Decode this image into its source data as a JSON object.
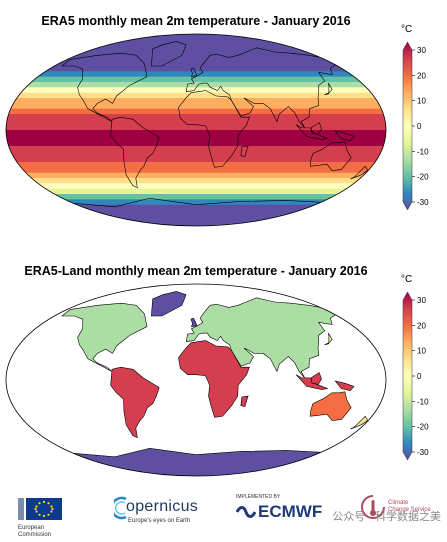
{
  "maps": [
    {
      "title": "ERA5 monthly mean 2m temperature - January 2016",
      "unit": "°C",
      "ticks": [
        30,
        20,
        10,
        0,
        -10,
        -20,
        -30
      ],
      "land_only": false
    },
    {
      "title": "ERA5-Land monthly mean 2m temperature - January 2016",
      "unit": "°C",
      "ticks": [
        30,
        20,
        10,
        0,
        -10,
        -20,
        -30
      ],
      "land_only": true
    }
  ],
  "colorscale": [
    "#5e4fa2",
    "#3288bd",
    "#66c2a5",
    "#abdda4",
    "#e6f598",
    "#ffffbf",
    "#fee08b",
    "#fdae61",
    "#f46d43",
    "#d53e4f",
    "#9e0142"
  ],
  "footer": {
    "eu_label_1": "European",
    "eu_label_2": "Commission",
    "copernicus_name": "opernicus",
    "copernicus_tagline": "Europe's eyes on Earth",
    "ecmwf_prefix": "IMPLEMENTED BY",
    "ecmwf_name": "ECMWF",
    "c3s_line1": "Climate",
    "c3s_line2": "Change Service",
    "watermark": "公众号 · 科学数据之美"
  }
}
